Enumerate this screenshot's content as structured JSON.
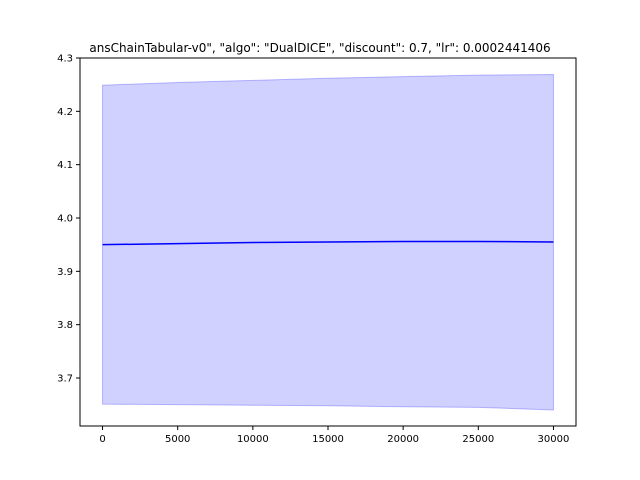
{
  "chart_data": {
    "type": "line",
    "title": "ansChainTabular-v0\", \"algo\": \"DualDICE\", \"discount\": 0.7, \"lr\": 0.0002441406",
    "xlabel": "",
    "ylabel": "",
    "xlim": [
      -1500,
      31500
    ],
    "ylim": [
      3.61,
      4.3
    ],
    "x_ticks": [
      0,
      5000,
      10000,
      15000,
      20000,
      25000,
      30000
    ],
    "y_ticks": [
      3.7,
      3.8,
      3.9,
      4.0,
      4.1,
      4.2,
      4.3
    ],
    "x_tick_labels": [
      "0",
      "5000",
      "10000",
      "15000",
      "20000",
      "25000",
      "30000"
    ],
    "y_tick_labels": [
      "3.7",
      "3.8",
      "3.9",
      "4.0",
      "4.1",
      "4.2",
      "4.3"
    ],
    "grid": false,
    "series": [
      {
        "x": [
          0,
          5000,
          10000,
          15000,
          20000,
          25000,
          30000
        ],
        "values": [
          3.95,
          3.952,
          3.954,
          3.955,
          3.956,
          3.956,
          3.955
        ],
        "upper": [
          4.249,
          4.254,
          4.258,
          4.262,
          4.265,
          4.268,
          4.269
        ],
        "lower": [
          3.651,
          3.65,
          3.649,
          3.648,
          3.646,
          3.645,
          3.64
        ],
        "color": "#0000ff",
        "fill_color": "#0000ff",
        "fill_alpha": 0.18
      }
    ]
  }
}
